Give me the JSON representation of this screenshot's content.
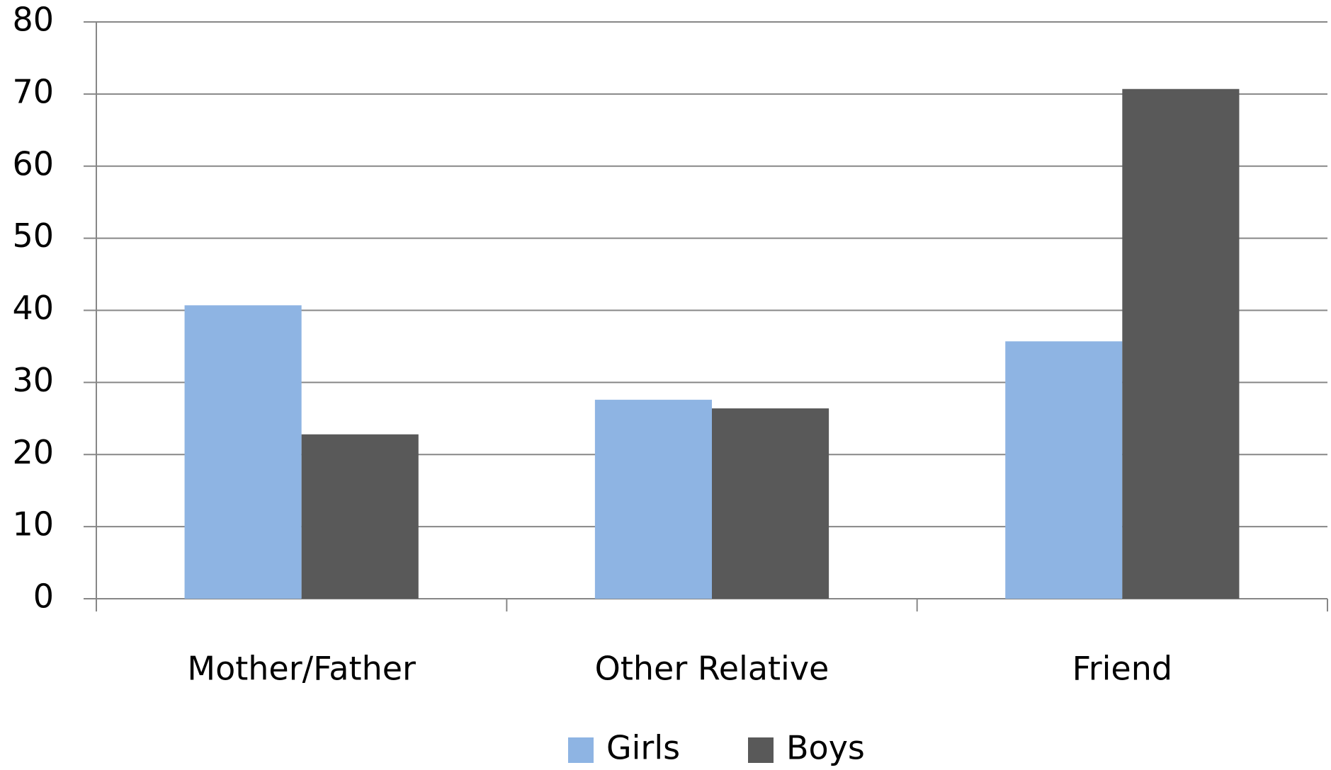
{
  "chart_data": {
    "type": "bar",
    "categories": [
      "Mother/Father",
      "Other Relative",
      "Friend"
    ],
    "series": [
      {
        "name": "Girls",
        "color": "#8eb4e3",
        "values": [
          40.7,
          27.6,
          35.7
        ]
      },
      {
        "name": "Boys",
        "color": "#595959",
        "values": [
          22.8,
          26.4,
          70.7
        ]
      }
    ],
    "ylim": [
      0,
      80
    ],
    "yticks": [
      0,
      10,
      20,
      30,
      40,
      50,
      60,
      70,
      80
    ],
    "grid": true,
    "legend": "bottom"
  }
}
